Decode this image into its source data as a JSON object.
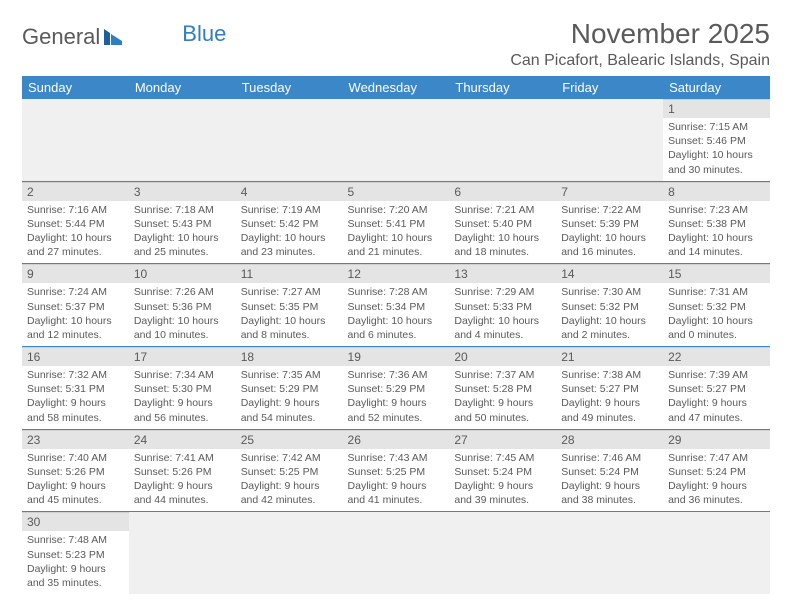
{
  "logo": {
    "text1": "General",
    "text2": "Blue"
  },
  "title": "November 2025",
  "location": "Can Picafort, Balearic Islands, Spain",
  "day_headers": [
    "Sunday",
    "Monday",
    "Tuesday",
    "Wednesday",
    "Thursday",
    "Friday",
    "Saturday"
  ],
  "colors": {
    "header_bg": "#3b87c8",
    "header_fg": "#ffffff",
    "text": "#5a5a5a",
    "daynum_bg": "#e4e4e4",
    "empty_bg": "#f0f0f0",
    "border": "#3b87c8"
  },
  "weeks": [
    [
      null,
      null,
      null,
      null,
      null,
      null,
      {
        "n": "1",
        "sr": "7:15 AM",
        "ss": "5:46 PM",
        "dl": "10 hours and 30 minutes."
      }
    ],
    [
      {
        "n": "2",
        "sr": "7:16 AM",
        "ss": "5:44 PM",
        "dl": "10 hours and 27 minutes."
      },
      {
        "n": "3",
        "sr": "7:18 AM",
        "ss": "5:43 PM",
        "dl": "10 hours and 25 minutes."
      },
      {
        "n": "4",
        "sr": "7:19 AM",
        "ss": "5:42 PM",
        "dl": "10 hours and 23 minutes."
      },
      {
        "n": "5",
        "sr": "7:20 AM",
        "ss": "5:41 PM",
        "dl": "10 hours and 21 minutes."
      },
      {
        "n": "6",
        "sr": "7:21 AM",
        "ss": "5:40 PM",
        "dl": "10 hours and 18 minutes."
      },
      {
        "n": "7",
        "sr": "7:22 AM",
        "ss": "5:39 PM",
        "dl": "10 hours and 16 minutes."
      },
      {
        "n": "8",
        "sr": "7:23 AM",
        "ss": "5:38 PM",
        "dl": "10 hours and 14 minutes."
      }
    ],
    [
      {
        "n": "9",
        "sr": "7:24 AM",
        "ss": "5:37 PM",
        "dl": "10 hours and 12 minutes."
      },
      {
        "n": "10",
        "sr": "7:26 AM",
        "ss": "5:36 PM",
        "dl": "10 hours and 10 minutes."
      },
      {
        "n": "11",
        "sr": "7:27 AM",
        "ss": "5:35 PM",
        "dl": "10 hours and 8 minutes."
      },
      {
        "n": "12",
        "sr": "7:28 AM",
        "ss": "5:34 PM",
        "dl": "10 hours and 6 minutes."
      },
      {
        "n": "13",
        "sr": "7:29 AM",
        "ss": "5:33 PM",
        "dl": "10 hours and 4 minutes."
      },
      {
        "n": "14",
        "sr": "7:30 AM",
        "ss": "5:32 PM",
        "dl": "10 hours and 2 minutes."
      },
      {
        "n": "15",
        "sr": "7:31 AM",
        "ss": "5:32 PM",
        "dl": "10 hours and 0 minutes."
      }
    ],
    [
      {
        "n": "16",
        "sr": "7:32 AM",
        "ss": "5:31 PM",
        "dl": "9 hours and 58 minutes."
      },
      {
        "n": "17",
        "sr": "7:34 AM",
        "ss": "5:30 PM",
        "dl": "9 hours and 56 minutes."
      },
      {
        "n": "18",
        "sr": "7:35 AM",
        "ss": "5:29 PM",
        "dl": "9 hours and 54 minutes."
      },
      {
        "n": "19",
        "sr": "7:36 AM",
        "ss": "5:29 PM",
        "dl": "9 hours and 52 minutes."
      },
      {
        "n": "20",
        "sr": "7:37 AM",
        "ss": "5:28 PM",
        "dl": "9 hours and 50 minutes."
      },
      {
        "n": "21",
        "sr": "7:38 AM",
        "ss": "5:27 PM",
        "dl": "9 hours and 49 minutes."
      },
      {
        "n": "22",
        "sr": "7:39 AM",
        "ss": "5:27 PM",
        "dl": "9 hours and 47 minutes."
      }
    ],
    [
      {
        "n": "23",
        "sr": "7:40 AM",
        "ss": "5:26 PM",
        "dl": "9 hours and 45 minutes."
      },
      {
        "n": "24",
        "sr": "7:41 AM",
        "ss": "5:26 PM",
        "dl": "9 hours and 44 minutes."
      },
      {
        "n": "25",
        "sr": "7:42 AM",
        "ss": "5:25 PM",
        "dl": "9 hours and 42 minutes."
      },
      {
        "n": "26",
        "sr": "7:43 AM",
        "ss": "5:25 PM",
        "dl": "9 hours and 41 minutes."
      },
      {
        "n": "27",
        "sr": "7:45 AM",
        "ss": "5:24 PM",
        "dl": "9 hours and 39 minutes."
      },
      {
        "n": "28",
        "sr": "7:46 AM",
        "ss": "5:24 PM",
        "dl": "9 hours and 38 minutes."
      },
      {
        "n": "29",
        "sr": "7:47 AM",
        "ss": "5:24 PM",
        "dl": "9 hours and 36 minutes."
      }
    ],
    [
      {
        "n": "30",
        "sr": "7:48 AM",
        "ss": "5:23 PM",
        "dl": "9 hours and 35 minutes."
      },
      null,
      null,
      null,
      null,
      null,
      null
    ]
  ],
  "labels": {
    "sunrise": "Sunrise: ",
    "sunset": "Sunset: ",
    "daylight": "Daylight: "
  }
}
